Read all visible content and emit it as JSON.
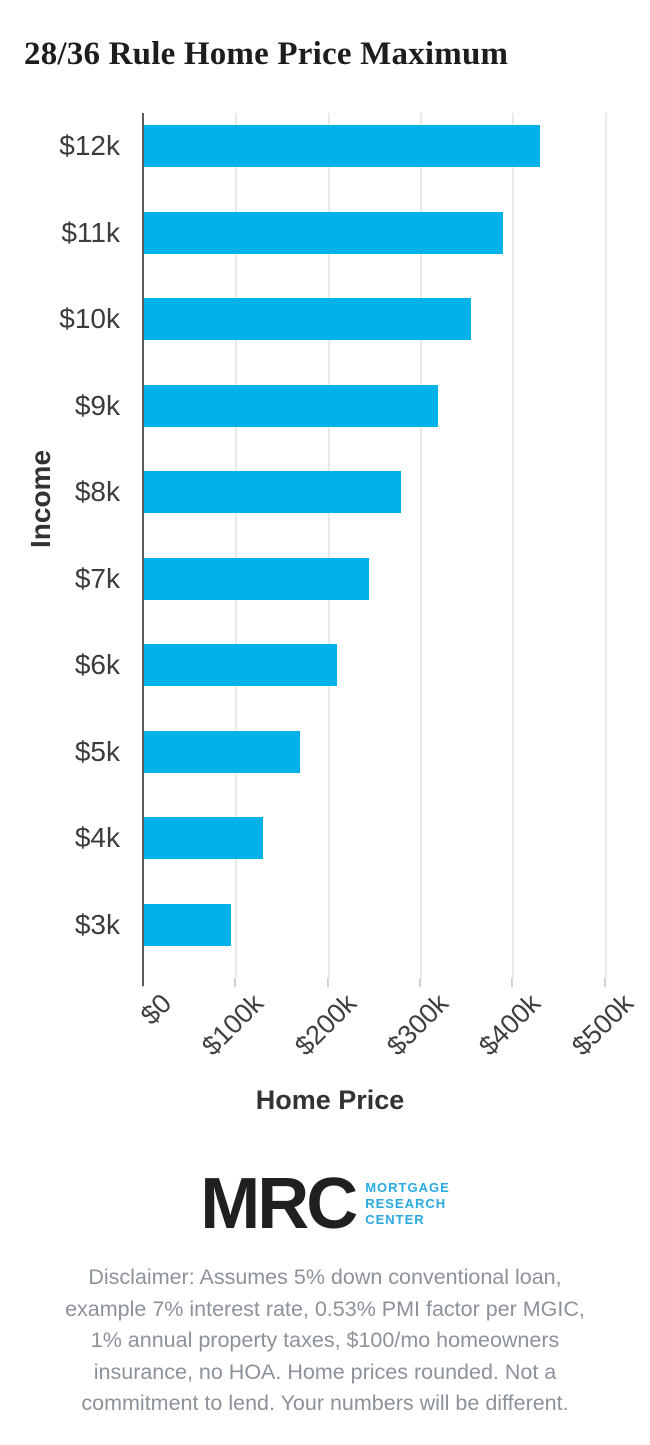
{
  "chart_data": {
    "type": "bar",
    "orientation": "horizontal",
    "title": "28/36 Rule Home Price Maximum",
    "xlabel": "Home Price",
    "ylabel": "Income",
    "categories": [
      "$12k",
      "$11k",
      "$10k",
      "$9k",
      "$8k",
      "$7k",
      "$6k",
      "$5k",
      "$4k",
      "$3k"
    ],
    "values_home_price_k": [
      430,
      390,
      355,
      320,
      280,
      245,
      210,
      170,
      130,
      95
    ],
    "x_ticks": [
      {
        "label": "$0",
        "value_k": 0
      },
      {
        "label": "$100k",
        "value_k": 100
      },
      {
        "label": "$200k",
        "value_k": 200
      },
      {
        "label": "$300k",
        "value_k": 300
      },
      {
        "label": "$400k",
        "value_k": 400
      },
      {
        "label": "$500k",
        "value_k": 500
      }
    ],
    "xlim_k": [
      0,
      533
    ],
    "grid": true,
    "legend": "none",
    "bar_color": "#00b2e8",
    "gridline_color": "#e9ebeb",
    "axis_color": "#595b5e"
  },
  "logo": {
    "acronym": "MRC",
    "wordmark_lines": [
      "MORTGAGE",
      "RESEARCH",
      "CENTER"
    ],
    "acronym_color": "#221f20",
    "wordmark_color": "#29abe2"
  },
  "disclaimer": {
    "text": "Disclaimer: Assumes 5% down conventional loan,\nexample 7% interest rate, 0.53% PMI factor per MGIC,\n1% annual property taxes, $100/mo homeowners\ninsurance, no HOA. Home prices rounded. Not a\ncommitment to lend. Your numbers will be different."
  }
}
